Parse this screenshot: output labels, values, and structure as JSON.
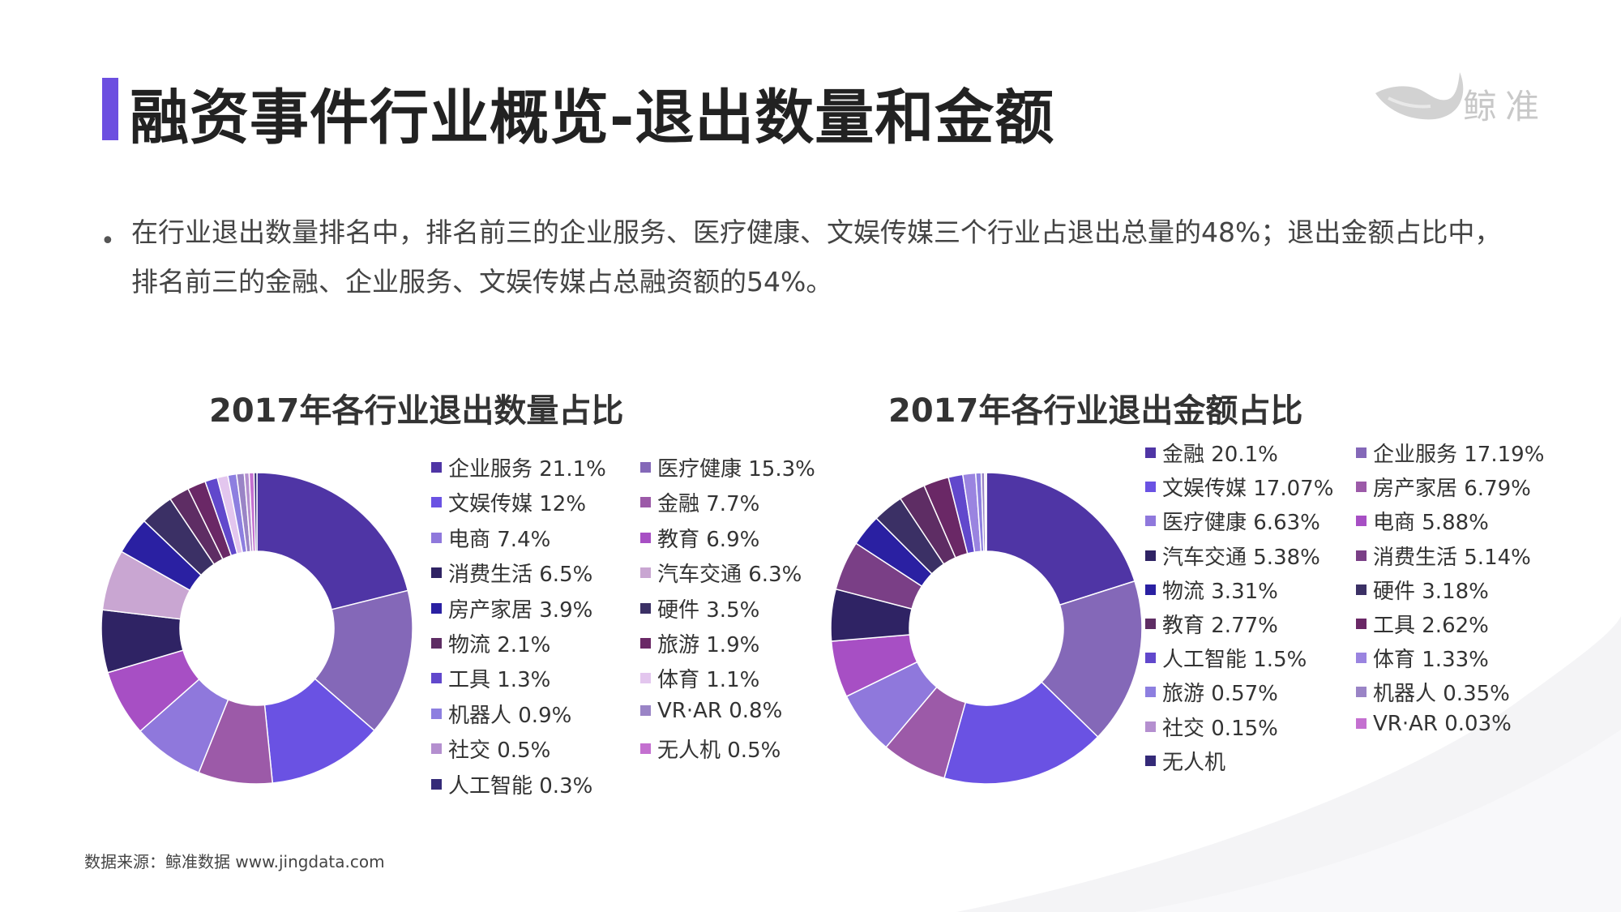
{
  "page": {
    "title": "融资事件行业概览-退出数量和金额",
    "description": "在行业退出数量排名中，排名前三的企业服务、医疗健康、文娱传媒三个行业占退出总量的48%；退出金额占比中，排名前三的金融、企业服务、文娱传媒占总融资额的54%。",
    "bullet": "•",
    "logo_text": "鲸准",
    "source": "数据来源：鲸准数据 www.jingdata.com",
    "accent_color": "#6c4fe0"
  },
  "chart_data": [
    {
      "type": "pie",
      "title": "2017年各行业退出数量占比",
      "legend": "right",
      "slices": [
        {
          "label": "企业服务 21.1%",
          "value": 21.1,
          "color": "#4f35a5"
        },
        {
          "label": "医疗健康 15.3%",
          "value": 15.3,
          "color": "#8468b8"
        },
        {
          "label": "文娱传媒 12%",
          "value": 12,
          "color": "#6a52e3"
        },
        {
          "label": "金融 7.7%",
          "value": 7.7,
          "color": "#9c5aa8"
        },
        {
          "label": "电商 7.4%",
          "value": 7.4,
          "color": "#8f78dc"
        },
        {
          "label": "教育 6.9%",
          "value": 6.9,
          "color": "#a74fc4"
        },
        {
          "label": "消费生活 6.5%",
          "value": 6.5,
          "color": "#2f2364"
        },
        {
          "label": "汽车交通 6.3%",
          "value": 6.3,
          "color": "#c9a6d2"
        },
        {
          "label": "房产家居 3.9%",
          "value": 3.9,
          "color": "#2a20a2"
        },
        {
          "label": "硬件 3.5%",
          "value": 3.5,
          "color": "#3b3065"
        },
        {
          "label": "物流 2.1%",
          "value": 2.1,
          "color": "#5e2d64"
        },
        {
          "label": "旅游 1.9%",
          "value": 1.9,
          "color": "#6a2866"
        },
        {
          "label": "工具 1.3%",
          "value": 1.3,
          "color": "#6148cc"
        },
        {
          "label": "体育 1.1%",
          "value": 1.1,
          "color": "#e3c6ee"
        },
        {
          "label": "机器人 0.9%",
          "value": 0.9,
          "color": "#8d7fe0"
        },
        {
          "label": "VR·AR 0.8%",
          "value": 0.8,
          "color": "#9a84c6"
        },
        {
          "label": "社交 0.5%",
          "value": 0.5,
          "color": "#b48fcf"
        },
        {
          "label": "无人机 0.5%",
          "value": 0.5,
          "color": "#c470d0"
        },
        {
          "label": "人工智能 0.3%",
          "value": 0.3,
          "color": "#342a78"
        }
      ]
    },
    {
      "type": "pie",
      "title": "2017年各行业退出金额占比",
      "legend": "right",
      "slices": [
        {
          "label": "金融 20.1%",
          "value": 20.1,
          "color": "#4f35a5"
        },
        {
          "label": "企业服务 17.19%",
          "value": 17.19,
          "color": "#8468b8"
        },
        {
          "label": "文娱传媒 17.07%",
          "value": 17.07,
          "color": "#6a52e3"
        },
        {
          "label": "房产家居 6.79%",
          "value": 6.79,
          "color": "#9c5aa8"
        },
        {
          "label": "医疗健康 6.63%",
          "value": 6.63,
          "color": "#8f78dc"
        },
        {
          "label": "电商 5.88%",
          "value": 5.88,
          "color": "#a74fc4"
        },
        {
          "label": "汽车交通 5.38%",
          "value": 5.38,
          "color": "#2f2364"
        },
        {
          "label": "消费生活 5.14%",
          "value": 5.14,
          "color": "#7a3f86"
        },
        {
          "label": "物流 3.31%",
          "value": 3.31,
          "color": "#2a20a2"
        },
        {
          "label": "硬件 3.18%",
          "value": 3.18,
          "color": "#3b3065"
        },
        {
          "label": "教育 2.77%",
          "value": 2.77,
          "color": "#5e2d64"
        },
        {
          "label": "工具 2.62%",
          "value": 2.62,
          "color": "#6a2866"
        },
        {
          "label": "人工智能 1.5%",
          "value": 1.5,
          "color": "#6148cc"
        },
        {
          "label": "体育 1.33%",
          "value": 1.33,
          "color": "#9a84e0"
        },
        {
          "label": "旅游 0.57%",
          "value": 0.57,
          "color": "#8d7fe0"
        },
        {
          "label": "机器人 0.35%",
          "value": 0.35,
          "color": "#9a84c6"
        },
        {
          "label": "社交 0.15%",
          "value": 0.15,
          "color": "#b48fcf"
        },
        {
          "label": "VR·AR 0.03%",
          "value": 0.03,
          "color": "#c470d0"
        },
        {
          "label": "无人机",
          "value": 0,
          "color": "#342a78"
        }
      ]
    }
  ]
}
